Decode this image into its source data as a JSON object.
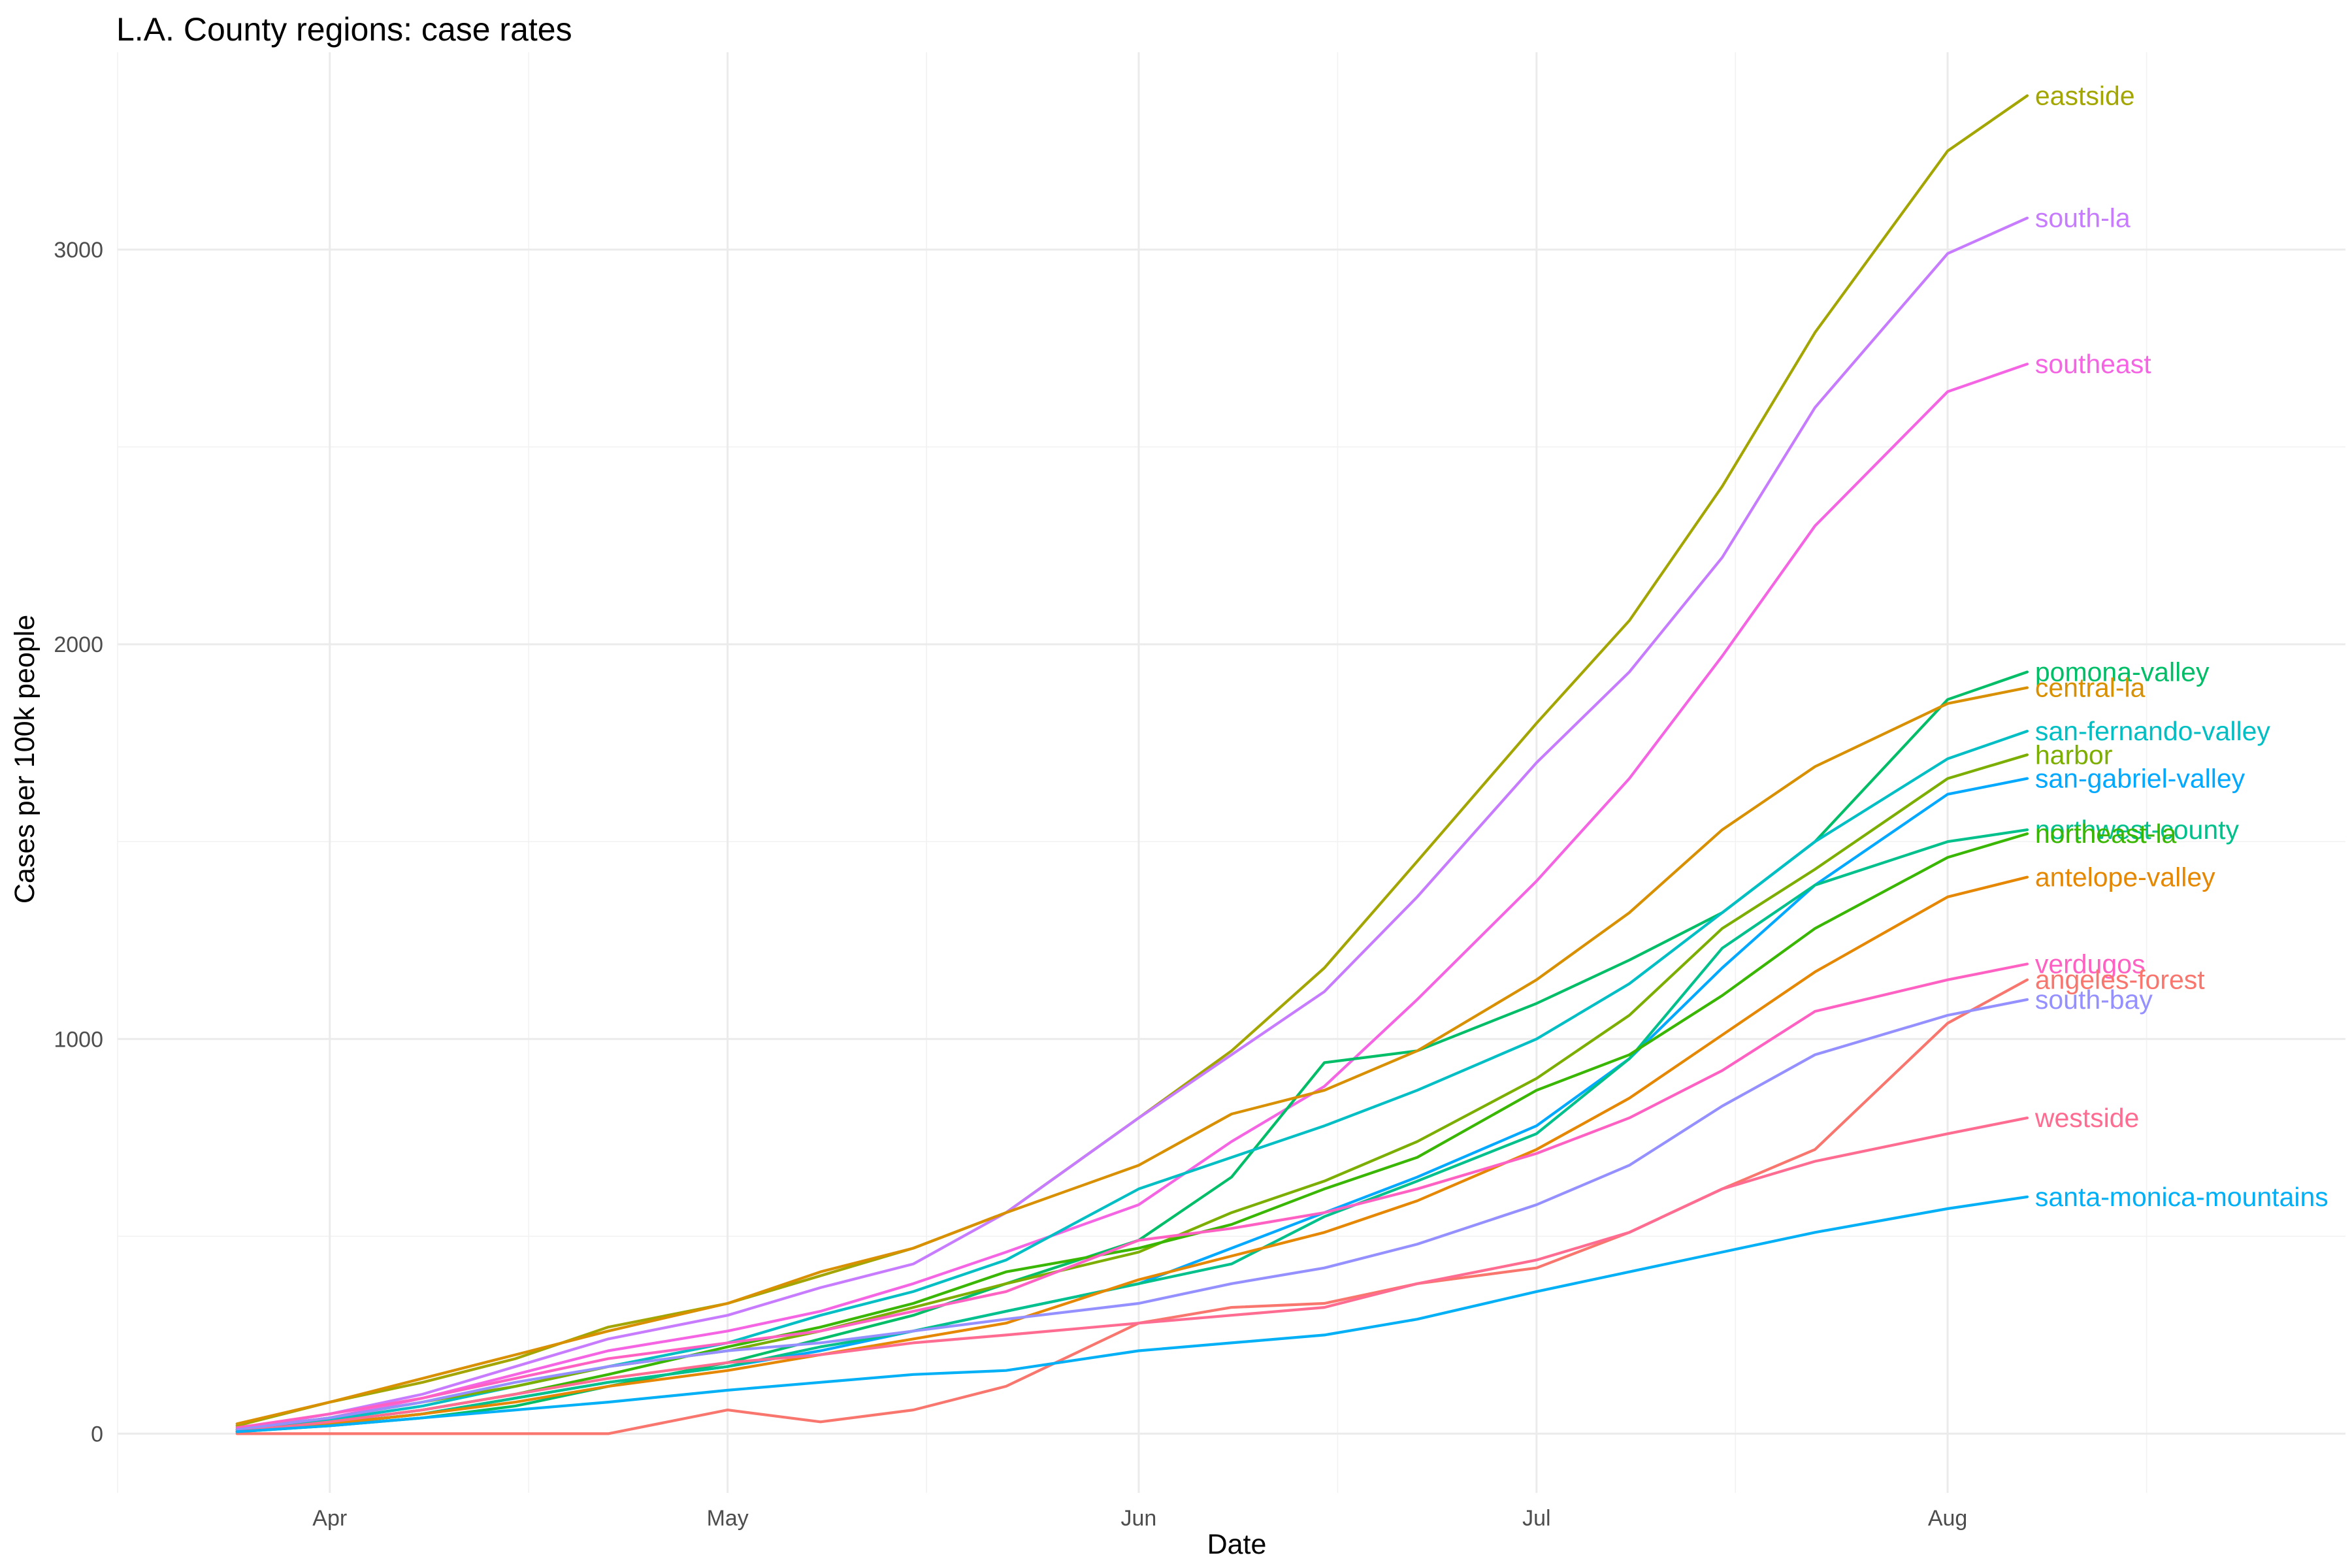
{
  "chart_data": {
    "type": "line",
    "title": "L.A. County regions: case rates",
    "xlabel": "Date",
    "ylabel": "Cases per 100k people",
    "x_ticks": [
      "Apr",
      "May",
      "Jun",
      "Jul",
      "Aug"
    ],
    "y_ticks": [
      0,
      1000,
      2000,
      3000
    ],
    "xlim": [
      "2020-03-16",
      "2020-08-31"
    ],
    "ylim": [
      -150,
      3500
    ],
    "grid": true,
    "legend": "direct labels at line ends",
    "x": [
      "2020-03-25",
      "2020-04-01",
      "2020-04-08",
      "2020-04-15",
      "2020-04-22",
      "2020-05-01",
      "2020-05-08",
      "2020-05-15",
      "2020-05-22",
      "2020-06-01",
      "2020-06-08",
      "2020-06-15",
      "2020-06-22",
      "2020-07-01",
      "2020-07-08",
      "2020-07-15",
      "2020-07-22",
      "2020-08-01",
      "2020-08-07"
    ],
    "series": [
      {
        "name": "eastside",
        "color": "#a3a500",
        "values": [
          20,
          80,
          130,
          190,
          270,
          330,
          400,
          470,
          560,
          800,
          970,
          1180,
          1450,
          1800,
          2060,
          2400,
          2790,
          3250,
          3390
        ]
      },
      {
        "name": "south-la",
        "color": "#c77cff",
        "values": [
          10,
          50,
          100,
          170,
          240,
          300,
          370,
          430,
          560,
          800,
          960,
          1120,
          1360,
          1700,
          1930,
          2220,
          2600,
          2990,
          3080
        ]
      },
      {
        "name": "southeast",
        "color": "#f564e3",
        "values": [
          10,
          40,
          90,
          150,
          210,
          260,
          310,
          380,
          460,
          580,
          740,
          880,
          1100,
          1400,
          1660,
          1970,
          2300,
          2640,
          2710
        ]
      },
      {
        "name": "pomona-valley",
        "color": "#00be67",
        "values": [
          5,
          20,
          40,
          70,
          120,
          180,
          240,
          300,
          380,
          490,
          650,
          940,
          970,
          1090,
          1200,
          1320,
          1500,
          1860,
          1930
        ]
      },
      {
        "name": "central-la",
        "color": "#d89000",
        "values": [
          25,
          80,
          140,
          200,
          260,
          330,
          410,
          470,
          560,
          680,
          810,
          870,
          970,
          1150,
          1320,
          1530,
          1690,
          1850,
          1890
        ]
      },
      {
        "name": "san-fernando-valley",
        "color": "#00bfc4",
        "values": [
          10,
          35,
          70,
          120,
          170,
          230,
          300,
          360,
          440,
          620,
          700,
          780,
          870,
          1000,
          1140,
          1320,
          1500,
          1710,
          1780
        ]
      },
      {
        "name": "harbor",
        "color": "#7cae00",
        "values": [
          10,
          40,
          80,
          120,
          170,
          210,
          260,
          320,
          380,
          460,
          560,
          640,
          740,
          900,
          1060,
          1280,
          1430,
          1660,
          1720
        ]
      },
      {
        "name": "san-gabriel-valley",
        "color": "#00a9ff",
        "values": [
          5,
          25,
          50,
          90,
          130,
          170,
          210,
          260,
          310,
          380,
          470,
          560,
          650,
          780,
          950,
          1180,
          1390,
          1620,
          1660
        ]
      },
      {
        "name": "northwest-county",
        "color": "#00c08b",
        "values": [
          5,
          25,
          50,
          90,
          130,
          170,
          220,
          260,
          310,
          380,
          430,
          550,
          640,
          760,
          950,
          1230,
          1390,
          1500,
          1530
        ]
      },
      {
        "name": "northeast-la",
        "color": "#39b600",
        "values": [
          5,
          30,
          60,
          100,
          150,
          220,
          270,
          330,
          410,
          470,
          530,
          620,
          700,
          870,
          960,
          1110,
          1280,
          1460,
          1520
        ]
      },
      {
        "name": "antelope-valley",
        "color": "#e58700",
        "values": [
          5,
          25,
          50,
          80,
          120,
          160,
          200,
          240,
          280,
          390,
          450,
          510,
          590,
          720,
          850,
          1010,
          1170,
          1360,
          1410
        ]
      },
      {
        "name": "verdugos",
        "color": "#ff61c3",
        "values": [
          15,
          50,
          90,
          140,
          190,
          230,
          260,
          310,
          360,
          490,
          520,
          560,
          620,
          710,
          800,
          920,
          1070,
          1150,
          1190
        ]
      },
      {
        "name": "angeles-forest",
        "color": "#f8766d",
        "values": [
          0,
          0,
          0,
          0,
          0,
          60,
          30,
          60,
          120,
          280,
          320,
          330,
          380,
          420,
          510,
          620,
          720,
          1040,
          1150
        ]
      },
      {
        "name": "south-bay",
        "color": "#9590ff",
        "values": [
          10,
          40,
          80,
          130,
          170,
          210,
          230,
          260,
          290,
          330,
          380,
          420,
          480,
          580,
          680,
          830,
          960,
          1060,
          1100
        ]
      },
      {
        "name": "westside",
        "color": "#ff6c91",
        "values": [
          5,
          30,
          60,
          100,
          140,
          180,
          200,
          230,
          250,
          280,
          300,
          320,
          380,
          440,
          510,
          620,
          690,
          760,
          800
        ]
      },
      {
        "name": "santa-monica-mountains",
        "color": "#00b0f6",
        "values": [
          5,
          20,
          40,
          60,
          80,
          110,
          130,
          150,
          160,
          210,
          230,
          250,
          290,
          360,
          410,
          460,
          510,
          570,
          600
        ]
      }
    ]
  }
}
